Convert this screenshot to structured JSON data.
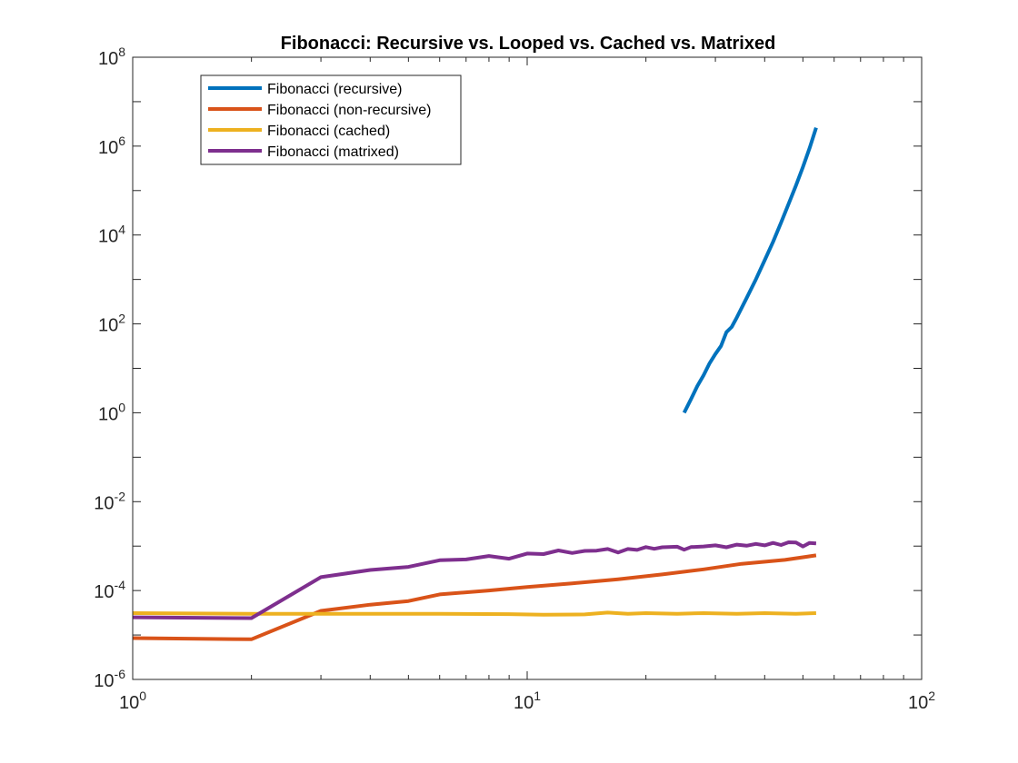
{
  "chart_data": {
    "type": "line",
    "title": "Fibonacci: Recursive vs. Looped vs. Cached vs. Matrixed",
    "xlabel": "",
    "ylabel": "",
    "xscale": "log",
    "yscale": "log",
    "xlim": [
      1,
      100
    ],
    "ylim": [
      1e-06,
      100000000
    ],
    "grid": false,
    "legend_position": "top-left",
    "x_ticks": [
      {
        "value": 1,
        "base": "10",
        "exp": "0"
      },
      {
        "value": 10,
        "base": "10",
        "exp": "1"
      },
      {
        "value": 100,
        "base": "10",
        "exp": "2"
      }
    ],
    "y_ticks": [
      {
        "value": 1e-06,
        "base": "10",
        "exp": "-6"
      },
      {
        "value": 0.0001,
        "base": "10",
        "exp": "-4"
      },
      {
        "value": 0.01,
        "base": "10",
        "exp": "-2"
      },
      {
        "value": 1,
        "base": "10",
        "exp": "0"
      },
      {
        "value": 100,
        "base": "10",
        "exp": "2"
      },
      {
        "value": 10000,
        "base": "10",
        "exp": "4"
      },
      {
        "value": 1000000,
        "base": "10",
        "exp": "6"
      },
      {
        "value": 100000000,
        "base": "10",
        "exp": "8"
      }
    ],
    "series": [
      {
        "name": "Fibonacci (recursive)",
        "color": "#0072BD",
        "points": [
          [
            25,
            1
          ],
          [
            26,
            2
          ],
          [
            27,
            4
          ],
          [
            28,
            7
          ],
          [
            29,
            13
          ],
          [
            30,
            21
          ],
          [
            31,
            32
          ],
          [
            32,
            65
          ],
          [
            33,
            85
          ],
          [
            34,
            140
          ],
          [
            36,
            380
          ],
          [
            38,
            1000
          ],
          [
            40,
            2700
          ],
          [
            42,
            7000
          ],
          [
            44,
            19000
          ],
          [
            46,
            50000
          ],
          [
            48,
            130000
          ],
          [
            50,
            340000
          ],
          [
            52,
            900000
          ],
          [
            54,
            2600000
          ]
        ]
      },
      {
        "name": "Fibonacci (non-recursive)",
        "color": "#D95319",
        "points": [
          [
            1,
            8.5e-06
          ],
          [
            2,
            8e-06
          ],
          [
            3,
            3.5e-05
          ],
          [
            4,
            4.8e-05
          ],
          [
            5,
            5.8e-05
          ],
          [
            6,
            8.2e-05
          ],
          [
            8,
            0.0001
          ],
          [
            10,
            0.00012
          ],
          [
            13,
            0.000145
          ],
          [
            17,
            0.00018
          ],
          [
            22,
            0.00023
          ],
          [
            28,
            0.0003
          ],
          [
            35,
            0.0004
          ],
          [
            45,
            0.00049
          ],
          [
            54,
            0.00062
          ]
        ]
      },
      {
        "name": "Fibonacci (cached)",
        "color": "#EDB120",
        "points": [
          [
            1,
            3.1e-05
          ],
          [
            2,
            3e-05
          ],
          [
            3,
            3e-05
          ],
          [
            6,
            3e-05
          ],
          [
            9,
            2.95e-05
          ],
          [
            11,
            2.85e-05
          ],
          [
            14,
            2.9e-05
          ],
          [
            16,
            3.2e-05
          ],
          [
            18,
            3e-05
          ],
          [
            20,
            3.1e-05
          ],
          [
            24,
            3e-05
          ],
          [
            28,
            3.1e-05
          ],
          [
            34,
            3e-05
          ],
          [
            40,
            3.1e-05
          ],
          [
            48,
            3e-05
          ],
          [
            54,
            3.1e-05
          ]
        ]
      },
      {
        "name": "Fibonacci (matrixed)",
        "color": "#7E2F8E",
        "points": [
          [
            1,
            2.5e-05
          ],
          [
            2,
            2.4e-05
          ],
          [
            3,
            0.0002
          ],
          [
            4,
            0.00029
          ],
          [
            5,
            0.00034
          ],
          [
            6,
            0.00048
          ],
          [
            7,
            0.0005
          ],
          [
            8,
            0.0006
          ],
          [
            9,
            0.00052
          ],
          [
            10,
            0.00068
          ],
          [
            11,
            0.00066
          ],
          [
            12,
            0.0008
          ],
          [
            13,
            0.0007
          ],
          [
            14,
            0.00078
          ],
          [
            15,
            0.00079
          ],
          [
            16,
            0.00086
          ],
          [
            17,
            0.00072
          ],
          [
            18,
            0.00086
          ],
          [
            19,
            0.00082
          ],
          [
            20,
            0.00095
          ],
          [
            21,
            0.00087
          ],
          [
            22,
            0.00094
          ],
          [
            24,
            0.00097
          ],
          [
            25,
            0.00083
          ],
          [
            26,
            0.00095
          ],
          [
            28,
            0.00098
          ],
          [
            30,
            0.00104
          ],
          [
            32,
            0.00094
          ],
          [
            34,
            0.00108
          ],
          [
            36,
            0.00102
          ],
          [
            38,
            0.00112
          ],
          [
            40,
            0.00104
          ],
          [
            42,
            0.00118
          ],
          [
            44,
            0.00106
          ],
          [
            46,
            0.00122
          ],
          [
            48,
            0.0012
          ],
          [
            50,
            0.00098
          ],
          [
            52,
            0.00118
          ],
          [
            54,
            0.00115
          ]
        ]
      }
    ]
  }
}
